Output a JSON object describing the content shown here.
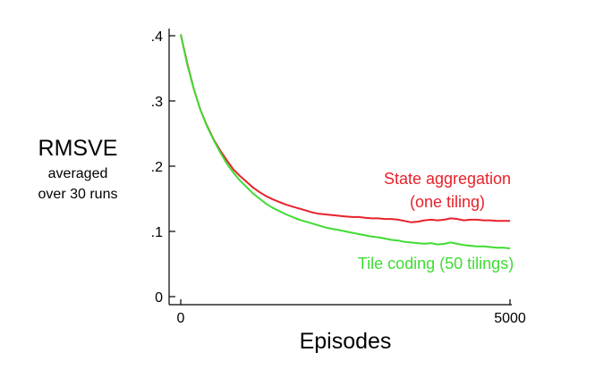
{
  "chart_data": {
    "type": "line",
    "title": "",
    "ylabel_lines": [
      "RMSVE",
      "averaged",
      "over 30 runs"
    ],
    "xlabel": "Episodes",
    "xlim": [
      0,
      5000
    ],
    "ylim": [
      0,
      0.4
    ],
    "x_ticks": [
      {
        "value": 0,
        "label": "0"
      },
      {
        "value": 5000,
        "label": "5000"
      }
    ],
    "y_ticks": [
      {
        "value": 0,
        "label": "0"
      },
      {
        "value": 0.1,
        "label": ".1"
      },
      {
        "value": 0.2,
        "label": ".2"
      },
      {
        "value": 0.3,
        "label": ".3"
      },
      {
        "value": 0.4,
        "label": ".4"
      }
    ],
    "grid": false,
    "series": [
      {
        "name_lines": [
          "State aggregation",
          "(one tiling)"
        ],
        "color": "#e8212b",
        "x": [
          0,
          100,
          200,
          300,
          400,
          500,
          600,
          700,
          800,
          900,
          1000,
          1100,
          1200,
          1300,
          1400,
          1500,
          1600,
          1700,
          1800,
          1900,
          2000,
          2100,
          2200,
          2300,
          2400,
          2500,
          2600,
          2700,
          2800,
          2900,
          3000,
          3100,
          3200,
          3300,
          3400,
          3500,
          3600,
          3700,
          3800,
          3900,
          4000,
          4100,
          4200,
          4300,
          4400,
          4500,
          4600,
          4700,
          4800,
          4900,
          5000
        ],
        "y": [
          0.402,
          0.357,
          0.318,
          0.286,
          0.262,
          0.241,
          0.224,
          0.209,
          0.195,
          0.185,
          0.176,
          0.167,
          0.16,
          0.154,
          0.149,
          0.145,
          0.141,
          0.138,
          0.135,
          0.132,
          0.129,
          0.127,
          0.126,
          0.125,
          0.124,
          0.123,
          0.122,
          0.122,
          0.121,
          0.12,
          0.12,
          0.119,
          0.119,
          0.118,
          0.116,
          0.114,
          0.115,
          0.117,
          0.118,
          0.117,
          0.118,
          0.12,
          0.119,
          0.117,
          0.118,
          0.118,
          0.117,
          0.117,
          0.116,
          0.116,
          0.116
        ]
      },
      {
        "name_lines": [
          "Tile coding (50 tilings)"
        ],
        "color": "#3fdc32",
        "x": [
          0,
          100,
          200,
          300,
          400,
          500,
          600,
          700,
          800,
          900,
          1000,
          1100,
          1200,
          1300,
          1400,
          1500,
          1600,
          1700,
          1800,
          1900,
          2000,
          2100,
          2200,
          2300,
          2400,
          2500,
          2600,
          2700,
          2800,
          2900,
          3000,
          3100,
          3200,
          3300,
          3400,
          3500,
          3600,
          3700,
          3800,
          3900,
          4000,
          4100,
          4200,
          4300,
          4400,
          4500,
          4600,
          4700,
          4800,
          4900,
          5000
        ],
        "y": [
          0.402,
          0.355,
          0.318,
          0.286,
          0.261,
          0.24,
          0.221,
          0.204,
          0.19,
          0.178,
          0.168,
          0.158,
          0.15,
          0.142,
          0.136,
          0.131,
          0.126,
          0.122,
          0.118,
          0.115,
          0.112,
          0.109,
          0.106,
          0.104,
          0.102,
          0.1,
          0.098,
          0.096,
          0.094,
          0.092,
          0.091,
          0.089,
          0.087,
          0.086,
          0.084,
          0.083,
          0.082,
          0.081,
          0.082,
          0.08,
          0.081,
          0.083,
          0.081,
          0.079,
          0.078,
          0.077,
          0.077,
          0.076,
          0.075,
          0.075,
          0.074
        ]
      }
    ]
  }
}
